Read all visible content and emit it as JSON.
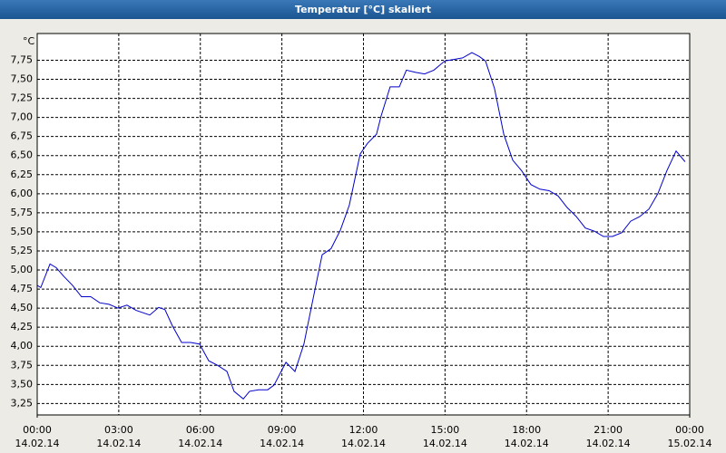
{
  "chart_data": {
    "type": "line",
    "title": "Temperatur [°C] skaliert",
    "y_label": "°C",
    "x": [
      0,
      0.13,
      0.47,
      0.7,
      0.97,
      1.3,
      1.63,
      1.97,
      2.3,
      2.64,
      2.97,
      3.3,
      3.64,
      4.14,
      4.47,
      4.7,
      4.97,
      5.31,
      5.64,
      5.97,
      6.31,
      6.64,
      6.98,
      7.24,
      7.58,
      7.81,
      8.14,
      8.48,
      8.71,
      9.15,
      9.48,
      9.81,
      10.15,
      10.48,
      10.81,
      11.15,
      11.48,
      11.88,
      12.15,
      12.48,
      12.65,
      12.98,
      13.32,
      13.58,
      13.92,
      14.25,
      14.59,
      14.99,
      15.32,
      15.65,
      15.99,
      16.26,
      16.49,
      16.82,
      17.16,
      17.49,
      17.82,
      18.16,
      18.49,
      18.83,
      19.16,
      19.49,
      19.83,
      20.16,
      20.49,
      20.83,
      21.16,
      21.5,
      21.83,
      22.16,
      22.5,
      22.83,
      23.16,
      23.5,
      23.83
    ],
    "series": [
      {
        "name": "Temperatur",
        "color": "#0000cc",
        "values": [
          4.8,
          4.77,
          5.08,
          5.03,
          4.92,
          4.8,
          4.65,
          4.65,
          4.57,
          4.55,
          4.5,
          4.54,
          4.47,
          4.41,
          4.51,
          4.48,
          4.27,
          4.05,
          4.05,
          4.03,
          3.81,
          3.75,
          3.67,
          3.41,
          3.31,
          3.41,
          3.43,
          3.43,
          3.49,
          3.79,
          3.67,
          4.03,
          4.63,
          5.2,
          5.28,
          5.52,
          5.85,
          6.52,
          6.66,
          6.78,
          7.02,
          7.4,
          7.4,
          7.62,
          7.59,
          7.57,
          7.62,
          7.74,
          7.76,
          7.78,
          7.85,
          7.8,
          7.74,
          7.38,
          6.78,
          6.44,
          6.3,
          6.12,
          6.06,
          6.04,
          5.97,
          5.82,
          5.7,
          5.55,
          5.51,
          5.44,
          5.44,
          5.49,
          5.64,
          5.7,
          5.8,
          6.0,
          6.3,
          6.56,
          6.42
        ]
      }
    ],
    "xlim": [
      0,
      24
    ],
    "xticks": [
      {
        "value": 0,
        "label": "00:00",
        "date": "14.02.14"
      },
      {
        "value": 3,
        "label": "03:00",
        "date": "14.02.14"
      },
      {
        "value": 6,
        "label": "06:00",
        "date": "14.02.14"
      },
      {
        "value": 9,
        "label": "09:00",
        "date": "14.02.14"
      },
      {
        "value": 12,
        "label": "12:00",
        "date": "14.02.14"
      },
      {
        "value": 15,
        "label": "15:00",
        "date": "14.02.14"
      },
      {
        "value": 18,
        "label": "18:00",
        "date": "14.02.14"
      },
      {
        "value": 21,
        "label": "21:00",
        "date": "14.02.14"
      },
      {
        "value": 24,
        "label": "00:00",
        "date": "15.02.14"
      }
    ],
    "ylim": [
      3.1,
      8.1
    ],
    "yticks": [
      {
        "value": 3.25,
        "label": "3,25"
      },
      {
        "value": 3.5,
        "label": "3,50"
      },
      {
        "value": 3.75,
        "label": "3,75"
      },
      {
        "value": 4,
        "label": "4,00"
      },
      {
        "value": 4.25,
        "label": "4,25"
      },
      {
        "value": 4.5,
        "label": "4,50"
      },
      {
        "value": 4.75,
        "label": "4,75"
      },
      {
        "value": 5,
        "label": "5,00"
      },
      {
        "value": 5.25,
        "label": "5,25"
      },
      {
        "value": 5.5,
        "label": "5,50"
      },
      {
        "value": 5.75,
        "label": "5,75"
      },
      {
        "value": 6,
        "label": "6,00"
      },
      {
        "value": 6.25,
        "label": "6,25"
      },
      {
        "value": 6.5,
        "label": "6,50"
      },
      {
        "value": 6.75,
        "label": "6,75"
      },
      {
        "value": 7,
        "label": "7,00"
      },
      {
        "value": 7.25,
        "label": "7,25"
      },
      {
        "value": 7.5,
        "label": "7,50"
      },
      {
        "value": 7.75,
        "label": "7,75"
      }
    ],
    "grid": true
  }
}
